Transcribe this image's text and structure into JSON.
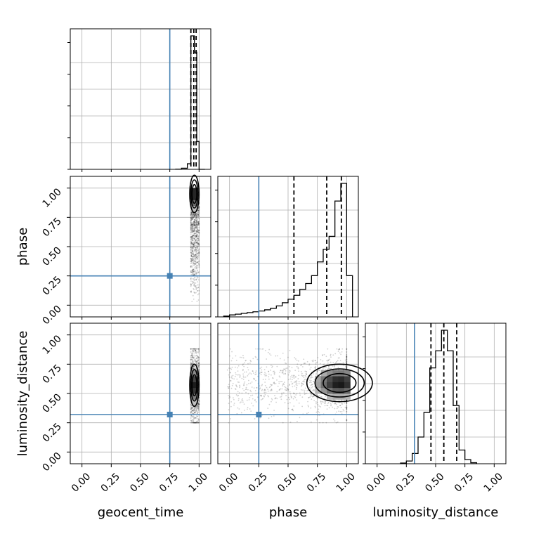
{
  "chart_data": {
    "type": "corner",
    "parameters": [
      "geocent_time",
      "phase",
      "luminosity_distance"
    ],
    "xlim": [
      -0.1,
      1.1
    ],
    "ylim": [
      -0.1,
      1.1
    ],
    "tick_labels": [
      "0.00",
      "0.25",
      "0.50",
      "0.75",
      "1.00"
    ],
    "grid": true,
    "truth_color": "#4682b4",
    "truths": {
      "geocent_time": 0.75,
      "phase": 0.25,
      "luminosity_distance": 0.32
    },
    "histograms": [
      {
        "parameter": "geocent_time",
        "bin_edges": [
          0.8,
          0.85,
          0.9,
          0.93,
          0.96,
          0.98,
          1.0,
          1.05
        ],
        "counts": [
          1,
          8,
          41,
          980,
          860,
          205,
          0
        ],
        "quantiles": [
          0.93,
          0.955,
          0.975
        ]
      },
      {
        "parameter": "phase",
        "bin_edges": [
          -0.05,
          0.0,
          0.05,
          0.1,
          0.15,
          0.2,
          0.25,
          0.3,
          0.35,
          0.4,
          0.45,
          0.5,
          0.55,
          0.6,
          0.65,
          0.7,
          0.75,
          0.8,
          0.85,
          0.9,
          0.95,
          1.0,
          1.05
        ],
        "counts": [
          2,
          5,
          7,
          9,
          11,
          13,
          15,
          18,
          22,
          28,
          36,
          45,
          55,
          70,
          85,
          105,
          140,
          172,
          205,
          295,
          340,
          105
        ],
        "quantiles": [
          0.55,
          0.83,
          0.955
        ]
      },
      {
        "parameter": "luminosity_distance",
        "bin_edges": [
          0.2,
          0.25,
          0.3,
          0.35,
          0.4,
          0.45,
          0.5,
          0.55,
          0.6,
          0.65,
          0.7,
          0.75,
          0.8,
          0.85
        ],
        "counts": [
          2,
          8,
          30,
          78,
          150,
          280,
          330,
          390,
          330,
          170,
          40,
          12,
          3
        ],
        "quantiles": [
          0.46,
          0.57,
          0.68
        ]
      }
    ],
    "pairs": [
      {
        "x": "geocent_time",
        "y": "phase",
        "peak": [
          0.96,
          0.95
        ],
        "spread": [
          0.02,
          0.08
        ],
        "range": [
          0.93,
          1.0,
          0.0,
          1.0
        ]
      },
      {
        "x": "geocent_time",
        "y": "luminosity_distance",
        "peak": [
          0.96,
          0.57
        ],
        "spread": [
          0.02,
          0.09
        ],
        "range": [
          0.93,
          1.0,
          0.25,
          0.88
        ]
      },
      {
        "x": "phase",
        "y": "luminosity_distance",
        "peak": [
          0.94,
          0.59
        ],
        "spread": [
          0.14,
          0.08
        ],
        "range": [
          -0.02,
          1.0,
          0.25,
          0.88
        ]
      }
    ]
  }
}
